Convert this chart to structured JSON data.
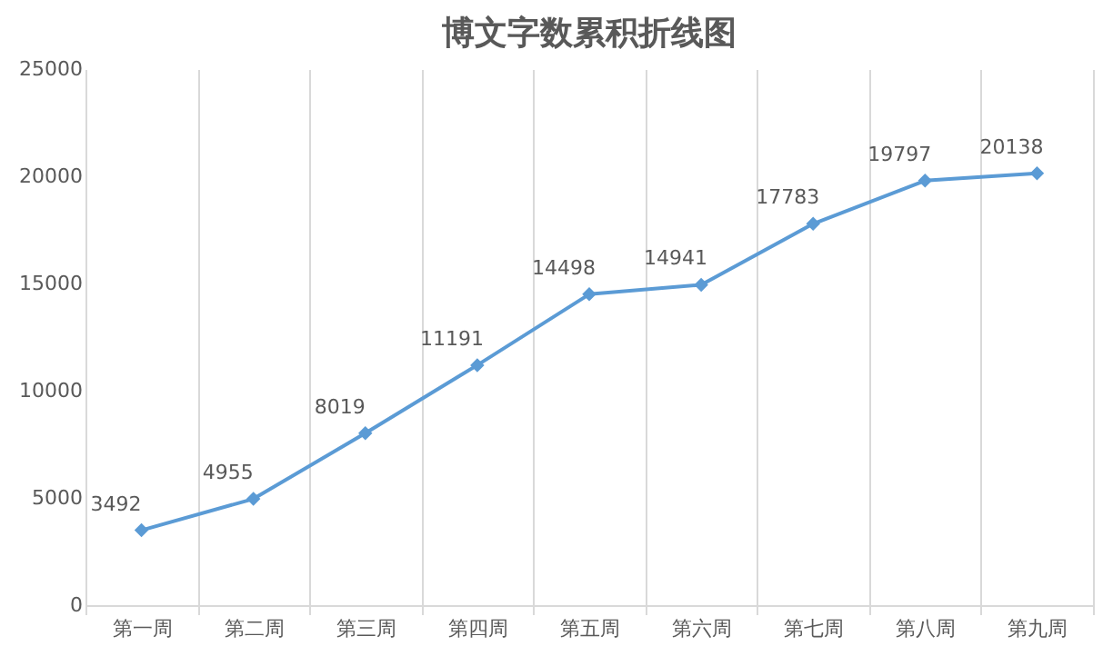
{
  "chart_data": {
    "type": "line",
    "title": "博文字数累积折线图",
    "categories": [
      "第一周",
      "第二周",
      "第三周",
      "第四周",
      "第五周",
      "第六周",
      "第七周",
      "第八周",
      "第九周"
    ],
    "series": [
      {
        "color": "#5b9bd5",
        "values": [
          3492,
          4955,
          8019,
          11191,
          14498,
          14941,
          17783,
          19797,
          20138
        ]
      }
    ],
    "ylim": [
      0,
      25000
    ],
    "yticks": [
      0,
      5000,
      10000,
      15000,
      20000,
      25000
    ],
    "grid": "x",
    "marker": "diamond",
    "line_style": "solid",
    "data_labels": true
  }
}
